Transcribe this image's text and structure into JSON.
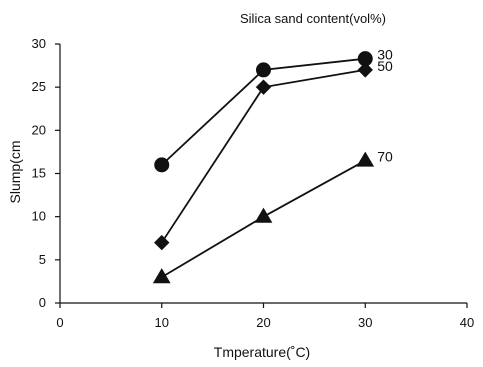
{
  "chart_data": {
    "type": "line",
    "legend_title": "Silica sand content(vol%)",
    "xlabel": "Tmperature(˚C)",
    "ylabel": "Slump(cm",
    "xlim": [
      0,
      40
    ],
    "ylim": [
      0,
      30
    ],
    "xticks": [
      0,
      10,
      20,
      30,
      40
    ],
    "yticks": [
      0,
      5,
      10,
      15,
      20,
      25,
      30
    ],
    "grid": false,
    "x": [
      10,
      20,
      30
    ],
    "series": [
      {
        "name": "30",
        "marker": "circle",
        "values": [
          16,
          27,
          28.3
        ]
      },
      {
        "name": "50",
        "marker": "diamond",
        "values": [
          7,
          25,
          27
        ]
      },
      {
        "name": "70",
        "marker": "triangle",
        "values": [
          3,
          10,
          16.5
        ]
      }
    ],
    "series_labels_placement": "right-of-last-point"
  }
}
